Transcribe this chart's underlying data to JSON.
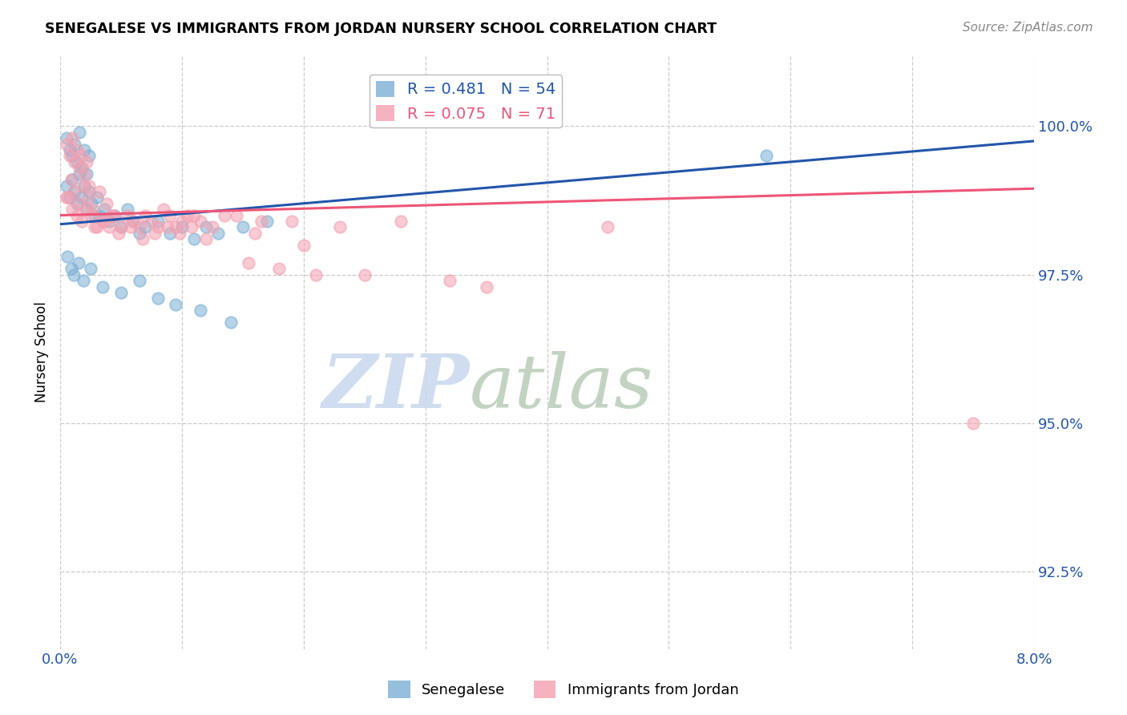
{
  "title": "SENEGALESE VS IMMIGRANTS FROM JORDAN NURSERY SCHOOL CORRELATION CHART",
  "source": "Source: ZipAtlas.com",
  "ylabel": "Nursery School",
  "ytick_values": [
    92.5,
    95.0,
    97.5,
    100.0
  ],
  "xmin": 0.0,
  "xmax": 8.0,
  "ymin": 91.2,
  "ymax": 101.2,
  "legend_blue_R": "0.481",
  "legend_blue_N": "54",
  "legend_pink_R": "0.075",
  "legend_pink_N": "71",
  "blue_scatter_x": [
    0.05,
    0.08,
    0.1,
    0.12,
    0.14,
    0.16,
    0.18,
    0.2,
    0.22,
    0.24,
    0.05,
    0.08,
    0.1,
    0.12,
    0.14,
    0.16,
    0.18,
    0.2,
    0.22,
    0.24,
    0.26,
    0.28,
    0.3,
    0.32,
    0.36,
    0.4,
    0.45,
    0.5,
    0.55,
    0.6,
    0.65,
    0.7,
    0.8,
    0.9,
    1.0,
    1.1,
    1.2,
    1.3,
    1.5,
    1.7,
    0.06,
    0.09,
    0.11,
    0.15,
    0.19,
    0.25,
    0.35,
    0.5,
    0.65,
    0.8,
    0.95,
    1.15,
    1.4,
    5.8
  ],
  "blue_scatter_y": [
    99.8,
    99.6,
    99.5,
    99.7,
    99.4,
    99.9,
    99.3,
    99.6,
    99.2,
    99.5,
    99.0,
    98.8,
    99.1,
    98.9,
    98.7,
    99.2,
    98.8,
    99.0,
    98.6,
    98.9,
    98.7,
    98.5,
    98.8,
    98.5,
    98.6,
    98.4,
    98.5,
    98.3,
    98.6,
    98.4,
    98.2,
    98.3,
    98.4,
    98.2,
    98.3,
    98.1,
    98.3,
    98.2,
    98.3,
    98.4,
    97.8,
    97.6,
    97.5,
    97.7,
    97.4,
    97.6,
    97.3,
    97.2,
    97.4,
    97.1,
    97.0,
    96.9,
    96.7,
    99.5
  ],
  "pink_scatter_x": [
    0.05,
    0.08,
    0.1,
    0.12,
    0.14,
    0.16,
    0.18,
    0.2,
    0.22,
    0.24,
    0.05,
    0.09,
    0.11,
    0.15,
    0.19,
    0.23,
    0.27,
    0.32,
    0.38,
    0.44,
    0.06,
    0.1,
    0.14,
    0.18,
    0.22,
    0.26,
    0.3,
    0.35,
    0.42,
    0.5,
    0.6,
    0.7,
    0.8,
    0.9,
    1.0,
    1.1,
    1.25,
    1.45,
    1.65,
    0.28,
    0.36,
    0.55,
    0.65,
    0.75,
    0.85,
    0.95,
    1.05,
    1.15,
    1.35,
    1.55,
    1.8,
    2.1,
    2.5,
    3.2,
    3.5,
    4.5,
    1.9,
    2.3,
    2.8,
    0.4,
    0.48,
    0.58,
    0.68,
    0.78,
    0.88,
    0.98,
    1.08,
    1.2,
    1.6,
    2.0,
    7.5
  ],
  "pink_scatter_y": [
    99.7,
    99.5,
    99.8,
    99.4,
    99.6,
    99.3,
    99.5,
    99.2,
    99.4,
    99.0,
    98.8,
    99.1,
    98.9,
    98.7,
    99.0,
    98.8,
    98.6,
    98.9,
    98.7,
    98.5,
    98.8,
    98.6,
    98.5,
    98.4,
    98.6,
    98.5,
    98.3,
    98.4,
    98.5,
    98.3,
    98.4,
    98.5,
    98.3,
    98.5,
    98.4,
    98.5,
    98.3,
    98.5,
    98.4,
    98.3,
    98.4,
    98.5,
    98.3,
    98.4,
    98.6,
    98.3,
    98.5,
    98.4,
    98.5,
    97.7,
    97.6,
    97.5,
    97.5,
    97.4,
    97.3,
    98.3,
    98.4,
    98.3,
    98.4,
    98.3,
    98.2,
    98.3,
    98.1,
    98.2,
    98.3,
    98.2,
    98.3,
    98.1,
    98.2,
    98.0,
    95.0
  ],
  "blue_color": "#7BAFD4",
  "pink_color": "#F4A0B0",
  "blue_line_color": "#2255AA",
  "pink_line_color": "#EE5577",
  "watermark_zip": "ZIP",
  "watermark_atlas": "atlas",
  "background_color": "#FFFFFF",
  "grid_color": "#CCCCCC"
}
